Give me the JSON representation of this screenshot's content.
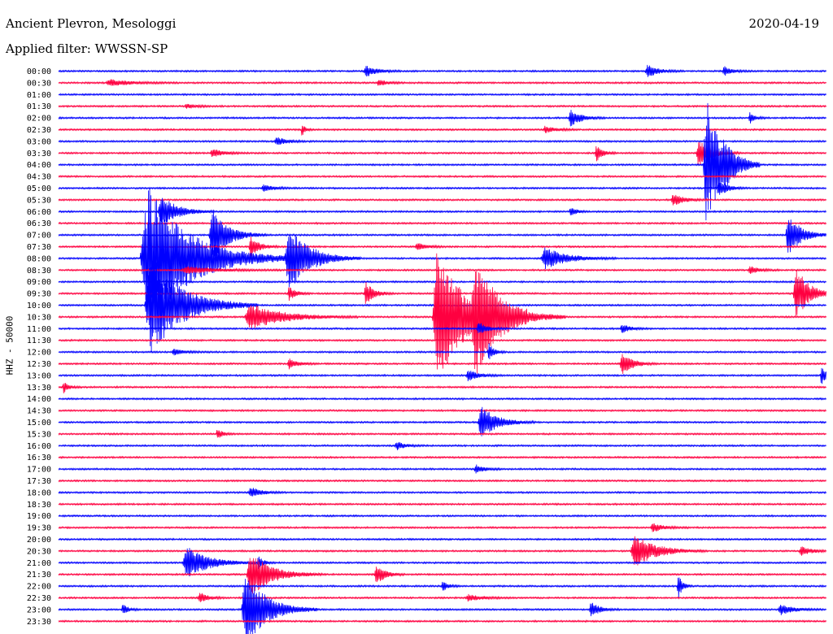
{
  "header": {
    "station": "Ancient Plevron, Mesologgi",
    "filter": "Applied filter: WWSSN-SP",
    "date": "2020-04-19"
  },
  "colors": {
    "trace_a": "#0000ff",
    "trace_b": "#ff0040",
    "text": "#000000"
  },
  "chart_data": {
    "type": "line",
    "title": "Ancient Plevron, Mesologgi",
    "subtitle": "Applied filter: WWSSN-SP",
    "date": "2020-04-19",
    "ylabel": "HHZ - 50000",
    "xlabel": "",
    "grid": false,
    "legend": "none",
    "row_interval_minutes": 30,
    "row_colors": [
      "#0000ff",
      "#ff0040"
    ],
    "tick_labels": [
      "00:00",
      "00:30",
      "01:00",
      "01:30",
      "02:00",
      "02:30",
      "03:00",
      "03:30",
      "04:00",
      "04:30",
      "05:00",
      "05:30",
      "06:00",
      "06:30",
      "07:00",
      "07:30",
      "08:00",
      "08:30",
      "09:00",
      "09:30",
      "10:00",
      "10:30",
      "11:00",
      "11:30",
      "12:00",
      "12:30",
      "13:00",
      "13:30",
      "14:00",
      "14:30",
      "15:00",
      "15:30",
      "16:00",
      "16:30",
      "17:00",
      "17:30",
      "18:00",
      "18:30",
      "19:00",
      "19:30",
      "20:00",
      "20:30",
      "21:00",
      "21:30",
      "22:00",
      "22:30",
      "23:00",
      "23:30"
    ],
    "events": [
      {
        "row": 0,
        "minute": 12.0,
        "amplitude": 0.5,
        "duration": 1.0
      },
      {
        "row": 0,
        "minute": 23.0,
        "amplitude": 0.6,
        "duration": 1.0
      },
      {
        "row": 0,
        "minute": 26.0,
        "amplitude": 0.4,
        "duration": 0.8
      },
      {
        "row": 1,
        "minute": 2.0,
        "amplitude": 0.3,
        "duration": 2.0
      },
      {
        "row": 1,
        "minute": 12.5,
        "amplitude": 0.3,
        "duration": 0.8
      },
      {
        "row": 3,
        "minute": 5.0,
        "amplitude": 0.2,
        "duration": 1.0
      },
      {
        "row": 4,
        "minute": 20.0,
        "amplitude": 0.8,
        "duration": 1.0
      },
      {
        "row": 4,
        "minute": 27.0,
        "amplitude": 0.5,
        "duration": 0.5
      },
      {
        "row": 5,
        "minute": 9.5,
        "amplitude": 0.6,
        "duration": 0.3
      },
      {
        "row": 5,
        "minute": 19.0,
        "amplitude": 0.3,
        "duration": 1.0
      },
      {
        "row": 6,
        "minute": 8.5,
        "amplitude": 0.4,
        "duration": 1.0
      },
      {
        "row": 7,
        "minute": 6.0,
        "amplitude": 0.4,
        "duration": 1.0
      },
      {
        "row": 7,
        "minute": 21.0,
        "amplitude": 0.8,
        "duration": 0.6
      },
      {
        "row": 7,
        "minute": 25.0,
        "amplitude": 1.2,
        "duration": 1.2
      },
      {
        "row": 8,
        "minute": 25.3,
        "amplitude": 6.0,
        "duration": 1.5
      },
      {
        "row": 8,
        "minute": 26.0,
        "amplitude": 0.8,
        "duration": 1.0
      },
      {
        "row": 10,
        "minute": 8.0,
        "amplitude": 0.3,
        "duration": 1.0
      },
      {
        "row": 10,
        "minute": 25.8,
        "amplitude": 0.8,
        "duration": 0.8
      },
      {
        "row": 11,
        "minute": 24.0,
        "amplitude": 0.6,
        "duration": 1.0
      },
      {
        "row": 12,
        "minute": 4.0,
        "amplitude": 1.5,
        "duration": 1.5
      },
      {
        "row": 12,
        "minute": 20.0,
        "amplitude": 0.5,
        "duration": 0.5
      },
      {
        "row": 14,
        "minute": 6.0,
        "amplitude": 2.5,
        "duration": 1.5
      },
      {
        "row": 14,
        "minute": 28.5,
        "amplitude": 2.0,
        "duration": 1.2
      },
      {
        "row": 15,
        "minute": 7.5,
        "amplitude": 1.0,
        "duration": 0.8
      },
      {
        "row": 15,
        "minute": 14.0,
        "amplitude": 0.3,
        "duration": 1.0
      },
      {
        "row": 16,
        "minute": 3.5,
        "amplitude": 6.5,
        "duration": 4.0
      },
      {
        "row": 16,
        "minute": 9.0,
        "amplitude": 3.0,
        "duration": 2.0
      },
      {
        "row": 16,
        "minute": 19.0,
        "amplitude": 1.0,
        "duration": 2.0
      },
      {
        "row": 17,
        "minute": 5.0,
        "amplitude": 0.3,
        "duration": 3.0
      },
      {
        "row": 17,
        "minute": 27.0,
        "amplitude": 0.4,
        "duration": 0.8
      },
      {
        "row": 19,
        "minute": 9.0,
        "amplitude": 0.7,
        "duration": 0.6
      },
      {
        "row": 19,
        "minute": 12.0,
        "amplitude": 1.0,
        "duration": 0.8
      },
      {
        "row": 19,
        "minute": 28.8,
        "amplitude": 2.5,
        "duration": 1.2
      },
      {
        "row": 20,
        "minute": 3.6,
        "amplitude": 4.5,
        "duration": 3.0
      },
      {
        "row": 21,
        "minute": 7.5,
        "amplitude": 1.2,
        "duration": 3.0
      },
      {
        "row": 21,
        "minute": 14.8,
        "amplitude": 6.5,
        "duration": 2.5
      },
      {
        "row": 21,
        "minute": 16.3,
        "amplitude": 4.0,
        "duration": 2.5
      },
      {
        "row": 22,
        "minute": 16.4,
        "amplitude": 0.6,
        "duration": 0.8
      },
      {
        "row": 22,
        "minute": 22.0,
        "amplitude": 0.4,
        "duration": 0.8
      },
      {
        "row": 24,
        "minute": 4.5,
        "amplitude": 0.3,
        "duration": 1.0
      },
      {
        "row": 24,
        "minute": 16.8,
        "amplitude": 0.8,
        "duration": 0.5
      },
      {
        "row": 25,
        "minute": 9.0,
        "amplitude": 0.5,
        "duration": 0.8
      },
      {
        "row": 25,
        "minute": 22.0,
        "amplitude": 1.0,
        "duration": 1.0
      },
      {
        "row": 26,
        "minute": 16.0,
        "amplitude": 0.5,
        "duration": 1.0
      },
      {
        "row": 26,
        "minute": 29.8,
        "amplitude": 1.0,
        "duration": 0.5
      },
      {
        "row": 27,
        "minute": 0.2,
        "amplitude": 0.5,
        "duration": 0.5
      },
      {
        "row": 30,
        "minute": 16.5,
        "amplitude": 1.5,
        "duration": 1.5
      },
      {
        "row": 31,
        "minute": 6.2,
        "amplitude": 0.5,
        "duration": 0.5
      },
      {
        "row": 32,
        "minute": 13.2,
        "amplitude": 0.4,
        "duration": 0.8
      },
      {
        "row": 34,
        "minute": 16.3,
        "amplitude": 0.4,
        "duration": 0.8
      },
      {
        "row": 36,
        "minute": 7.5,
        "amplitude": 0.5,
        "duration": 1.0
      },
      {
        "row": 39,
        "minute": 23.2,
        "amplitude": 0.4,
        "duration": 1.0
      },
      {
        "row": 41,
        "minute": 22.5,
        "amplitude": 1.5,
        "duration": 2.0
      },
      {
        "row": 41,
        "minute": 29.0,
        "amplitude": 0.4,
        "duration": 1.0
      },
      {
        "row": 42,
        "minute": 5.0,
        "amplitude": 1.5,
        "duration": 2.0
      },
      {
        "row": 42,
        "minute": 7.8,
        "amplitude": 0.6,
        "duration": 0.5
      },
      {
        "row": 43,
        "minute": 7.5,
        "amplitude": 2.0,
        "duration": 2.0
      },
      {
        "row": 43,
        "minute": 12.4,
        "amplitude": 1.0,
        "duration": 0.8
      },
      {
        "row": 44,
        "minute": 15.0,
        "amplitude": 0.5,
        "duration": 0.5
      },
      {
        "row": 44,
        "minute": 24.2,
        "amplitude": 1.2,
        "duration": 0.4
      },
      {
        "row": 45,
        "minute": 5.5,
        "amplitude": 0.5,
        "duration": 0.8
      },
      {
        "row": 45,
        "minute": 16.0,
        "amplitude": 0.3,
        "duration": 1.2
      },
      {
        "row": 46,
        "minute": 7.3,
        "amplitude": 3.5,
        "duration": 2.0
      },
      {
        "row": 46,
        "minute": 20.8,
        "amplitude": 0.7,
        "duration": 0.8
      },
      {
        "row": 46,
        "minute": 28.2,
        "amplitude": 0.5,
        "duration": 1.2
      },
      {
        "row": 46,
        "minute": 2.5,
        "amplitude": 0.5,
        "duration": 0.5
      }
    ]
  }
}
